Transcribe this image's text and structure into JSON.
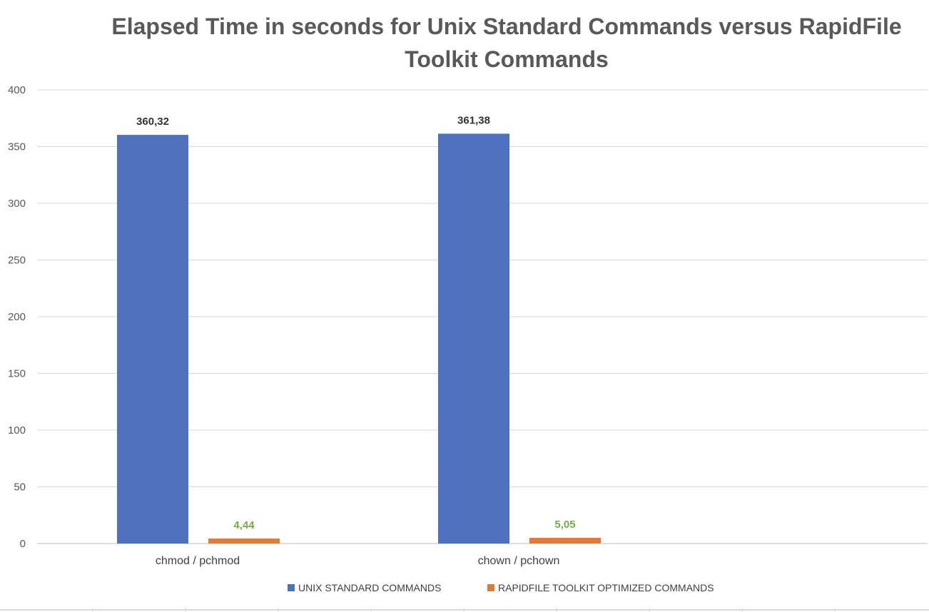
{
  "chart_data": {
    "type": "bar",
    "title": "Elapsed Time in seconds for Unix Standard Commands versus RapidFile Toolkit Commands",
    "categories": [
      "chmod / pchmod",
      "chown / pchown"
    ],
    "series": [
      {
        "name": "UNIX STANDARD COMMANDS",
        "values": [
          360.32,
          361.38
        ],
        "data_labels": [
          "360,32",
          "361,38"
        ],
        "color": "#4F71BE",
        "label_color": "#333333"
      },
      {
        "name": "RAPIDFILE TOOLKIT OPTIMIZED COMMANDS",
        "values": [
          4.44,
          5.05
        ],
        "data_labels": [
          "4,44",
          "5,05"
        ],
        "color": "#E07B39",
        "label_color": "#70AD47"
      }
    ],
    "ylim": [
      0,
      400
    ],
    "yticks": [
      0,
      50,
      100,
      150,
      200,
      250,
      300,
      350,
      400
    ],
    "grid": true,
    "legend_position": "bottom"
  }
}
